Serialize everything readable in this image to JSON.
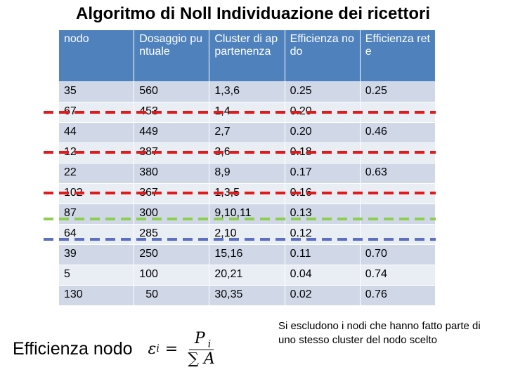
{
  "header": {
    "title": "Algoritmo di Noll Individuazione dei ricettori"
  },
  "table": {
    "columns": [
      "nodo",
      "Dosaggio puntuale",
      "Cluster di appartenenza",
      "Efficienza nodo",
      "Efficienza rete"
    ],
    "rows": [
      [
        "35",
        "560",
        "1,3,6",
        "0.25",
        "0.25"
      ],
      [
        "67",
        "453",
        "1,4",
        "0.20",
        null
      ],
      [
        "44",
        "449",
        "2,7",
        "0.20",
        "0.46"
      ],
      [
        "12",
        "387",
        "3,6",
        "0.18",
        null
      ],
      [
        "22",
        "380",
        "8,9",
        "0.17",
        "0.63"
      ],
      [
        "102",
        "367",
        "1,3,5",
        "0.16",
        null
      ],
      [
        "87",
        "300",
        "9,10,11",
        "0.13",
        null
      ],
      [
        "64",
        "285",
        "2,10",
        "0.12",
        null
      ],
      [
        "39",
        "250",
        "15,16",
        "0.11",
        "0.70"
      ],
      [
        "5",
        "100",
        "20,21",
        "0.04",
        "0.74"
      ],
      [
        "130",
        "50",
        "30,35",
        "0.02",
        "0.76"
      ]
    ]
  },
  "formula": {
    "label": "Efficienza nodo",
    "lhs": "ε",
    "lhs_sub": "i",
    "equals": "=",
    "num": "P",
    "num_sub": "i",
    "den": "∑ A"
  },
  "note": "Si escludono i nodi che hanno fatto parte di uno stesso cluster del nodo scelto"
}
